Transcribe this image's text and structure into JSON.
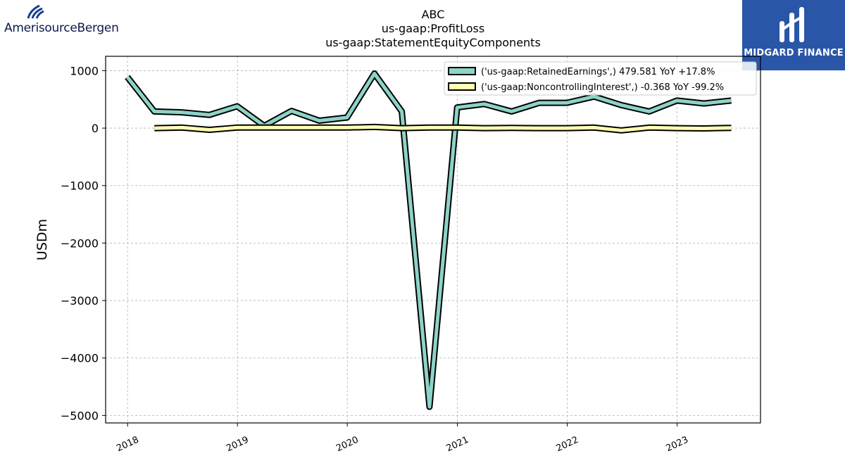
{
  "logos": {
    "left": {
      "name": "AmerisourceBergen",
      "color": "#1a3e8c"
    },
    "right": {
      "name": "MIDGARD FINANCE",
      "color": "#2a56a8"
    }
  },
  "titles": [
    "ABC",
    "us-gaap:ProfitLoss",
    "us-gaap:StatementEquityComponents"
  ],
  "chart_data": {
    "type": "line",
    "title": "ABC\nus-gaap:ProfitLoss\nus-gaap:StatementEquityComponents",
    "xlabel": "",
    "ylabel": "USDm",
    "xlim": [
      "2017-10-20",
      "2023-10-05"
    ],
    "ylim": [
      -5130,
      1250
    ],
    "xticks": [
      "2018",
      "2019",
      "2020",
      "2021",
      "2022",
      "2023"
    ],
    "yticks": [
      1000,
      0,
      -1000,
      -2000,
      -3000,
      -4000,
      -5000
    ],
    "grid": true,
    "legend_position": "upper right",
    "series": [
      {
        "name": "('us-gaap:RetainedEarnings',) 479.581 YoY +17.8%",
        "color": "#8dd3c7",
        "x": [
          "2017-12-31",
          "2018-03-31",
          "2018-06-30",
          "2018-09-30",
          "2018-12-31",
          "2019-03-31",
          "2019-06-30",
          "2019-09-30",
          "2019-12-31",
          "2020-03-31",
          "2020-06-30",
          "2020-09-30",
          "2020-12-31",
          "2021-03-31",
          "2021-06-30",
          "2021-09-30",
          "2021-12-31",
          "2022-03-31",
          "2022-06-30",
          "2022-09-30",
          "2022-12-31",
          "2023-03-31",
          "2023-06-30"
        ],
        "y": [
          890,
          290,
          275,
          230,
          380,
          40,
          300,
          130,
          185,
          950,
          290,
          -4850,
          360,
          420,
          290,
          440,
          440,
          550,
          400,
          290,
          480,
          430,
          480
        ]
      },
      {
        "name": "('us-gaap:NoncontrollingInterest',) -0.368 YoY -99.2%",
        "color": "#ffffb3",
        "x": [
          "2018-03-31",
          "2018-06-30",
          "2018-09-30",
          "2018-12-31",
          "2019-03-31",
          "2019-06-30",
          "2019-09-30",
          "2019-12-31",
          "2020-03-31",
          "2020-06-30",
          "2020-09-30",
          "2020-12-31",
          "2021-03-31",
          "2021-06-30",
          "2021-09-30",
          "2021-12-31",
          "2022-03-31",
          "2022-06-30",
          "2022-09-30",
          "2022-12-31",
          "2023-03-31",
          "2023-06-30"
        ],
        "y": [
          0,
          10,
          -30,
          10,
          10,
          10,
          10,
          10,
          20,
          0,
          10,
          10,
          0,
          5,
          0,
          0,
          10,
          -40,
          10,
          0,
          -5,
          5
        ]
      }
    ]
  }
}
